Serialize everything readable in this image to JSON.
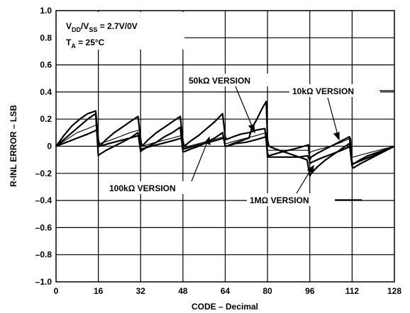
{
  "chart_data": {
    "type": "line",
    "xlabel": "CODE – Decimal",
    "ylabel": "R-INL ERROR – LSB",
    "xlim": [
      0,
      128
    ],
    "ylim": [
      -1.0,
      1.0
    ],
    "grid": true,
    "x_ticks": [
      "0",
      "16",
      "32",
      "48",
      "64",
      "80",
      "96",
      "112",
      "128"
    ],
    "y_ticks": [
      "1.0",
      "0.8",
      "0.6",
      "0.4",
      "0.2",
      "0",
      "–0.2",
      "–0.4",
      "–0.6",
      "–0.8",
      "–1.0"
    ],
    "conditions": {
      "line1_prefix": "V",
      "line1_sub1": "DD",
      "line1_mid": "/V",
      "line1_sub2": "SS",
      "line1_value": " = 2.7V/0V",
      "line2_prefix": "T",
      "line2_sub": "A",
      "line2_value": " = 25°C"
    },
    "annotations": {
      "v50k": "50kΩ VERSION",
      "v10k": "10kΩ VERSION",
      "v100k": "100kΩ VERSION",
      "v1m": "1MΩ VERSION"
    },
    "series": [
      {
        "x": [
          0,
          3,
          6,
          9,
          12,
          15,
          16,
          16.5,
          19,
          22,
          25,
          28,
          31,
          32,
          32.5,
          35,
          38,
          41,
          44,
          47,
          48,
          48.5,
          51,
          54,
          57,
          60,
          63,
          64,
          64.5,
          67,
          70,
          73,
          76,
          79,
          80,
          80.5,
          83,
          86,
          89,
          92,
          95,
          96,
          96.5,
          99,
          102,
          105,
          108,
          111,
          112,
          112.5,
          115,
          118,
          121,
          124,
          127,
          128
        ],
        "y": [
          0.0,
          0.08,
          0.15,
          0.2,
          0.24,
          0.26,
          0.05,
          0.0,
          0.05,
          0.1,
          0.14,
          0.18,
          0.22,
          0.05,
          0.0,
          0.05,
          0.1,
          0.14,
          0.18,
          0.22,
          0.04,
          0.0,
          0.04,
          0.08,
          0.13,
          0.18,
          0.24,
          0.07,
          0.05,
          0.07,
          0.09,
          0.1,
          0.12,
          0.13,
          -0.05,
          -0.08,
          -0.08,
          -0.08,
          -0.08,
          -0.08,
          -0.07,
          -0.1,
          -0.08,
          -0.05,
          -0.02,
          0.01,
          0.04,
          0.07,
          -0.12,
          -0.13,
          -0.1,
          -0.07,
          -0.05,
          -0.03,
          -0.01,
          0.0
        ],
        "stroke": 2.2
      },
      {
        "x": [
          0,
          3,
          6,
          9,
          12,
          15,
          16,
          16.5,
          19,
          22,
          25,
          28,
          31,
          32,
          32.5,
          35,
          38,
          41,
          44,
          47,
          48,
          48.5,
          51,
          54,
          57,
          60,
          63,
          64,
          64.5,
          67,
          70,
          73,
          74,
          76,
          78,
          79.5,
          80,
          80.5,
          83,
          86,
          89,
          92,
          95,
          96,
          96.5,
          99,
          102,
          105,
          108,
          111,
          112,
          112.5,
          115,
          118,
          121,
          124,
          127,
          128
        ],
        "y": [
          0.0,
          0.05,
          0.1,
          0.15,
          0.2,
          0.24,
          -0.07,
          -0.06,
          -0.03,
          0.0,
          0.03,
          0.06,
          0.1,
          -0.04,
          -0.03,
          0.0,
          0.03,
          0.07,
          0.1,
          0.14,
          -0.04,
          -0.04,
          -0.02,
          0.0,
          0.03,
          0.06,
          0.1,
          0.0,
          0.0,
          0.02,
          0.04,
          0.06,
          0.13,
          0.2,
          0.28,
          0.33,
          0.05,
          0.0,
          -0.02,
          -0.04,
          -0.06,
          -0.08,
          -0.1,
          -0.22,
          -0.2,
          -0.15,
          -0.1,
          -0.06,
          -0.02,
          0.02,
          -0.15,
          -0.16,
          -0.13,
          -0.1,
          -0.07,
          -0.04,
          -0.01,
          0.0
        ],
        "stroke": 2.2
      },
      {
        "x": [
          0,
          4,
          8,
          12,
          15.5,
          16,
          16.5,
          20,
          24,
          28,
          31.5,
          32,
          32.5,
          36,
          40,
          44,
          47.5,
          48,
          48.5,
          52,
          56,
          60,
          63.5,
          64,
          64.5,
          68,
          72,
          76,
          79.5,
          80,
          80.5,
          84,
          88,
          92,
          95.5,
          96,
          96.5,
          100,
          104,
          108,
          111.5,
          112,
          112.5,
          116,
          120,
          124,
          128
        ],
        "y": [
          0.0,
          0.05,
          0.1,
          0.13,
          0.16,
          0.02,
          0.02,
          0.04,
          0.07,
          0.1,
          0.12,
          0.0,
          0.0,
          0.02,
          0.04,
          0.06,
          0.08,
          -0.01,
          -0.01,
          0.01,
          0.03,
          0.05,
          0.07,
          0.02,
          0.02,
          0.04,
          0.06,
          0.08,
          0.1,
          -0.03,
          -0.03,
          -0.03,
          -0.03,
          -0.03,
          -0.03,
          -0.05,
          -0.04,
          -0.02,
          0.0,
          0.03,
          0.06,
          -0.08,
          -0.08,
          -0.06,
          -0.04,
          -0.02,
          0.0
        ],
        "stroke": 1.1
      },
      {
        "x": [
          0,
          4,
          8,
          12,
          15.5,
          16,
          16.5,
          20,
          24,
          28,
          31.5,
          32,
          32.5,
          36,
          40,
          44,
          47.5,
          48,
          48.5,
          52,
          56,
          60,
          63.5,
          64,
          64.5,
          68,
          72,
          76,
          79.5,
          80,
          80.5,
          84,
          88,
          92,
          95.5,
          96,
          96.5,
          100,
          104,
          108,
          111.5,
          112,
          112.5,
          116,
          120,
          124,
          128
        ],
        "y": [
          0.0,
          0.03,
          0.06,
          0.09,
          0.12,
          0.0,
          0.0,
          0.02,
          0.04,
          0.06,
          0.08,
          -0.02,
          -0.02,
          0.0,
          0.02,
          0.04,
          0.06,
          -0.02,
          -0.02,
          0.0,
          0.02,
          0.04,
          0.06,
          0.0,
          0.0,
          0.02,
          0.03,
          0.05,
          0.07,
          -0.08,
          -0.07,
          -0.05,
          -0.03,
          -0.01,
          0.01,
          -0.13,
          -0.12,
          -0.09,
          -0.06,
          -0.03,
          0.0,
          -0.14,
          -0.13,
          -0.1,
          -0.07,
          -0.03,
          0.0
        ],
        "stroke": 2.2
      }
    ]
  }
}
